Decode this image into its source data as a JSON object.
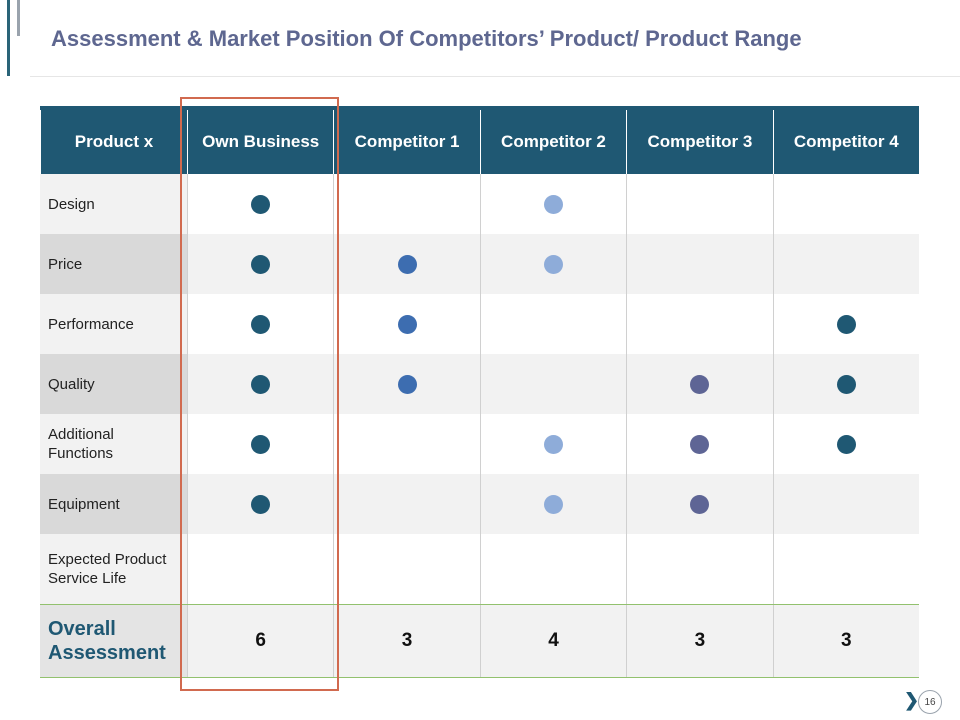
{
  "slide": {
    "title": "Assessment & Market Position Of Competitors’ Product/ Product Range",
    "page_number": "16",
    "next_arrow": "❯"
  },
  "table": {
    "headers": [
      "Product x",
      "Own Business",
      "Competitor 1",
      "Competitor 2",
      "Competitor 3",
      "Competitor 4"
    ],
    "rows": [
      {
        "label": "Design",
        "marks": [
          "dark",
          "",
          "light",
          "",
          ""
        ]
      },
      {
        "label": "Price",
        "marks": [
          "dark",
          "blue",
          "light",
          "",
          ""
        ]
      },
      {
        "label": "Performance",
        "marks": [
          "dark",
          "blue",
          "",
          "",
          "dark"
        ]
      },
      {
        "label": "Quality",
        "marks": [
          "dark",
          "blue",
          "",
          "purple",
          "dark"
        ]
      },
      {
        "label": "Additional Functions",
        "marks": [
          "dark",
          "",
          "light",
          "purple",
          "dark"
        ]
      },
      {
        "label": "Equipment",
        "marks": [
          "dark",
          "",
          "light",
          "purple",
          ""
        ]
      },
      {
        "label": "Expected Product Service Life",
        "marks": [
          "",
          "",
          "",
          "",
          ""
        ]
      }
    ],
    "overall": {
      "label": "Overall Assessment",
      "scores": [
        "6",
        "3",
        "4",
        "3",
        "3"
      ]
    }
  },
  "colors": {
    "header_bg": "#1f5873",
    "highlight_border": "#d16a4f",
    "dot_dark": "#1f5873",
    "dot_blue": "#3d6db0",
    "dot_light": "#8eacd9",
    "dot_purple": "#5e6595"
  }
}
